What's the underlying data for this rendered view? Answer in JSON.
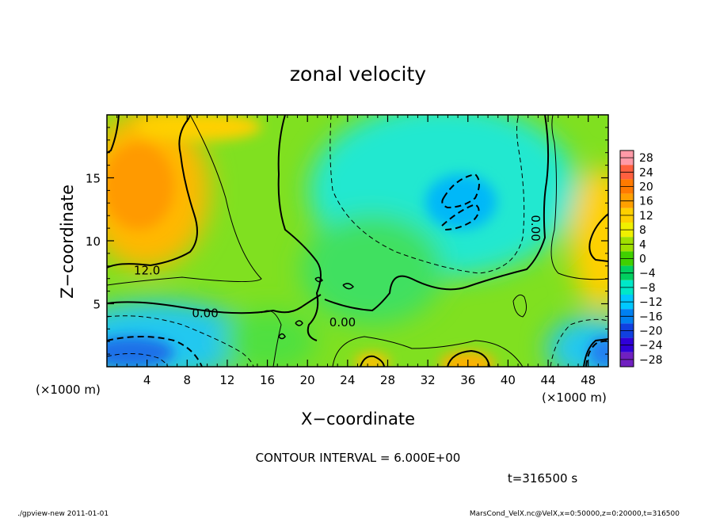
{
  "chart_data": {
    "type": "heatmap",
    "title": "zonal velocity",
    "xlabel": "X−coordinate",
    "ylabel": "Z−coordinate",
    "x_unit_left": "(×1000 m)",
    "x_unit_right": "(×1000 m)",
    "xlim": [
      0,
      50
    ],
    "ylim": [
      0,
      20
    ],
    "x_ticks": [
      4,
      8,
      12,
      16,
      20,
      24,
      28,
      32,
      36,
      40,
      44,
      48
    ],
    "y_ticks": [
      5,
      10,
      15
    ],
    "colorbar": {
      "levels": [
        28,
        24,
        20,
        16,
        12,
        8,
        4,
        0,
        -4,
        -8,
        -12,
        -16,
        -20,
        -24,
        -28
      ],
      "labels": [
        "28",
        "24",
        "20",
        "16",
        "12",
        "8",
        "4",
        "0",
        "−4",
        "−8",
        "−12",
        "−16",
        "−20",
        "−24",
        "−28"
      ],
      "colors": [
        "#ff9aa8",
        "#ff6040",
        "#ff7a00",
        "#ffa000",
        "#ffd000",
        "#f0f000",
        "#a0e000",
        "#40d000",
        "#00d060",
        "#00e8c8",
        "#00c8ff",
        "#0080f0",
        "#1040e0",
        "#3000d8",
        "#7020c0"
      ]
    },
    "contour_labels": [
      {
        "text": "12.0",
        "x": 4,
        "y": 7.7
      },
      {
        "text": "0.00",
        "x": 9.8,
        "y": 4.3
      },
      {
        "text": "0.00",
        "x": 23.5,
        "y": 3.6
      },
      {
        "text": "0.00",
        "x": 42.8,
        "y": 11
      }
    ],
    "contour_interval": "CONTOUR INTERVAL = 6.000E+00",
    "time_label": "t=316500 s"
  },
  "footer": {
    "left": "./gpview-new   2011-01-01",
    "right": "MarsCond_VelX.nc@VelX,x=0:50000,z=0:20000,t=316500"
  }
}
